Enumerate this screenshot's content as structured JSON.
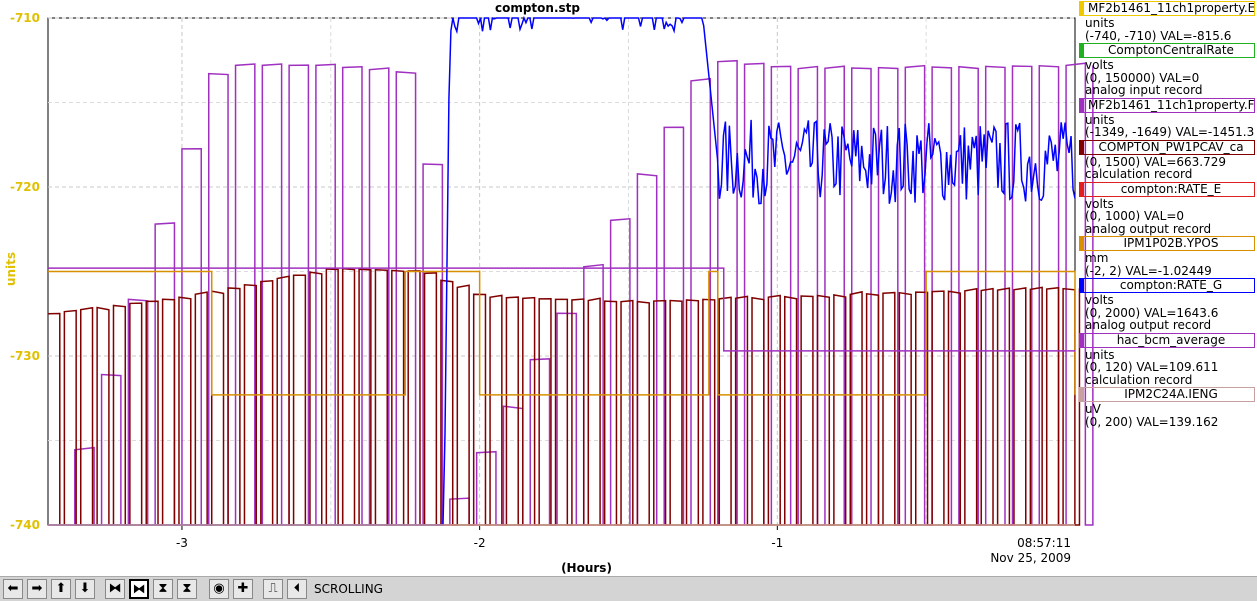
{
  "chart_data": {
    "type": "line",
    "title": "compton.stp",
    "ylabel": "units",
    "xlabel": "(Hours)",
    "ylim": [
      -740,
      -710
    ],
    "yticks": [
      -710,
      -720,
      -730,
      -740
    ],
    "ytick_labels": [
      "-710",
      "-720",
      "-730",
      "-740"
    ],
    "xlim": [
      -3.45,
      0.0
    ],
    "xticks": [
      -3,
      -2,
      -1
    ],
    "xtick_labels": [
      "-3",
      "-2",
      "-1"
    ],
    "end_time": "08:57:11",
    "end_date": "Nov 25, 2009",
    "grid": true,
    "legend_position": "right",
    "series": [
      {
        "name": "MF2b1461_11ch1property.E",
        "color": "#f0c800",
        "lines": [
          "units",
          "(-740, -710) VAL=-815.6"
        ],
        "shape": "flat",
        "value": -740
      },
      {
        "name": "ComptonCentralRate",
        "color": "#20b020",
        "lines": [
          "volts",
          "(0, 150000) VAL=0",
          "analog input record"
        ],
        "shape": "flat",
        "value": -740
      },
      {
        "name": "MF2b1461_11ch1property.F",
        "color": "#a030c0",
        "lines": [
          "units",
          "(-1349, -1649) VAL=-1451.3"
        ],
        "shape": "pulsed",
        "x": [
          -3.45,
          -2.9,
          -2.55,
          -2.2,
          -2.15,
          -1.25,
          -0.95,
          0.0
        ],
        "y": [
          -740,
          -712.8,
          -712.8,
          -713.3,
          -740,
          -712.5,
          -713.0,
          -712.8
        ]
      },
      {
        "name": "COMPTON_PW1PCAV_ca",
        "color": "#800000",
        "lines": [
          "(0, 1500) VAL=663.729",
          "calculation record"
        ],
        "shape": "pulsed",
        "x": [
          -3.45,
          -3.0,
          -2.5,
          -2.2,
          -2.0,
          -1.5,
          -1.0,
          -0.5,
          0.0
        ],
        "y": [
          -727.5,
          -726.5,
          -724.8,
          -725.0,
          -726.5,
          -726.8,
          -726.5,
          -726.2,
          -726.0
        ]
      },
      {
        "name": "compton:RATE_E",
        "color": "#e02020",
        "lines": [
          "volts",
          "(0, 1000) VAL=0",
          "analog output record"
        ],
        "shape": "flat",
        "value": -740
      },
      {
        "name": "IPM1P02B.YPOS",
        "color": "#d89000",
        "lines": [
          "mm",
          "(-2, 2) VAL=-1.02449"
        ],
        "shape": "step",
        "x": [
          -3.45,
          -3.0,
          -2.9,
          -2.55,
          -2.25,
          -2.0,
          -1.5,
          -1.23,
          -1.2,
          -0.52,
          -0.5,
          0.0
        ],
        "y": [
          -725.0,
          -725.0,
          -732.3,
          -732.3,
          -725.0,
          -732.3,
          -732.3,
          -725.0,
          -732.3,
          -732.3,
          -725.0,
          -732.3
        ]
      },
      {
        "name": "compton:RATE_G",
        "color": "#0000ff",
        "lines": [
          "volts",
          "(0, 2000) VAL=1643.6",
          "analog output record"
        ],
        "shape": "noisy",
        "x": [
          -3.45,
          -2.12,
          -2.1,
          -1.25,
          -1.2,
          -0.0
        ],
        "y": [
          -740,
          -740,
          -710,
          -710,
          -718.5,
          -718.5
        ]
      },
      {
        "name": "hac_bcm_average",
        "color": "#a030c0",
        "lines": [
          "units",
          "(0, 120) VAL=109.611",
          "calculation record"
        ],
        "shape": "step",
        "x": [
          -3.45,
          -1.2,
          -1.18,
          0.0
        ],
        "y": [
          -724.8,
          -724.8,
          -729.7,
          -729.7
        ]
      },
      {
        "name": "IPM2C24A.IENG",
        "color": "#c8a0a0",
        "lines": [
          "uV",
          "(0, 200) VAL=139.162"
        ],
        "shape": "flat",
        "value": -740
      }
    ]
  },
  "toolbar": {
    "buttons": [
      "left-arrow",
      "right-arrow",
      "up-arrow",
      "down-arrow",
      "zoom-x-out",
      "zoom-x-in",
      "zoom-y-out",
      "zoom-y-in",
      "reset",
      "plus",
      "autoscale",
      "back"
    ],
    "glyphs": [
      "⬅",
      "➡",
      "⬆",
      "⬇",
      "⧓",
      "⧓",
      "⧗",
      "⧗",
      "◉",
      "✚",
      "⎍",
      "⏴"
    ],
    "mode": "SCROLLING"
  }
}
